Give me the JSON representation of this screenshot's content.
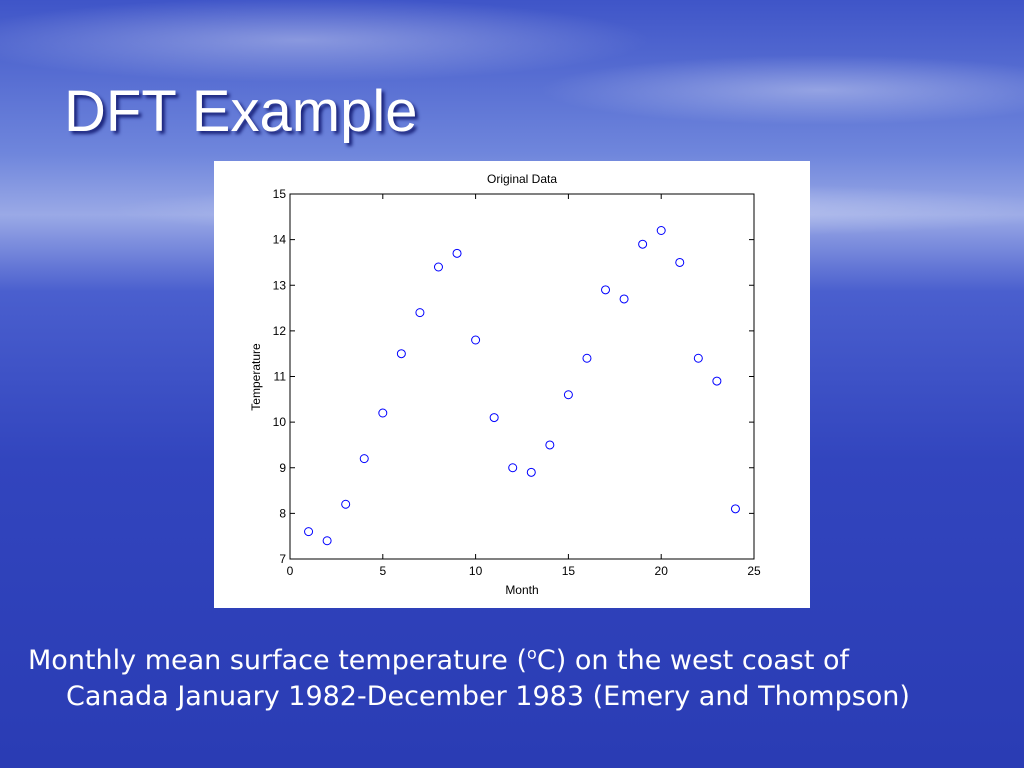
{
  "slide": {
    "title": "DFT Example",
    "caption": {
      "before_sup": "Monthly mean surface temperature (",
      "sup": "o",
      "after_sup": "C) on the west coast of",
      "second_line": "Canada January 1982-December 1983 (Emery and Thompson)"
    }
  },
  "chart_data": {
    "type": "scatter",
    "title": "Original Data",
    "x_label": "Month",
    "y_label": "Temperature",
    "x": [
      1,
      2,
      3,
      4,
      5,
      6,
      7,
      8,
      9,
      10,
      11,
      12,
      13,
      14,
      15,
      16,
      17,
      18,
      19,
      20,
      21,
      22,
      23,
      24
    ],
    "values": [
      7.6,
      7.4,
      8.2,
      9.2,
      10.2,
      11.5,
      12.4,
      13.4,
      13.7,
      11.8,
      10.1,
      9.0,
      8.9,
      9.5,
      10.6,
      11.4,
      12.9,
      12.7,
      13.9,
      14.2,
      13.5,
      11.4,
      10.9,
      8.1
    ],
    "color": "#0000ff",
    "xlim": [
      0,
      25
    ],
    "xticks": [
      0,
      5,
      10,
      15,
      20,
      25
    ],
    "ylim": [
      7,
      15
    ],
    "yticks": [
      7,
      8,
      9,
      10,
      11,
      12,
      13,
      14,
      15
    ],
    "grid": false
  }
}
